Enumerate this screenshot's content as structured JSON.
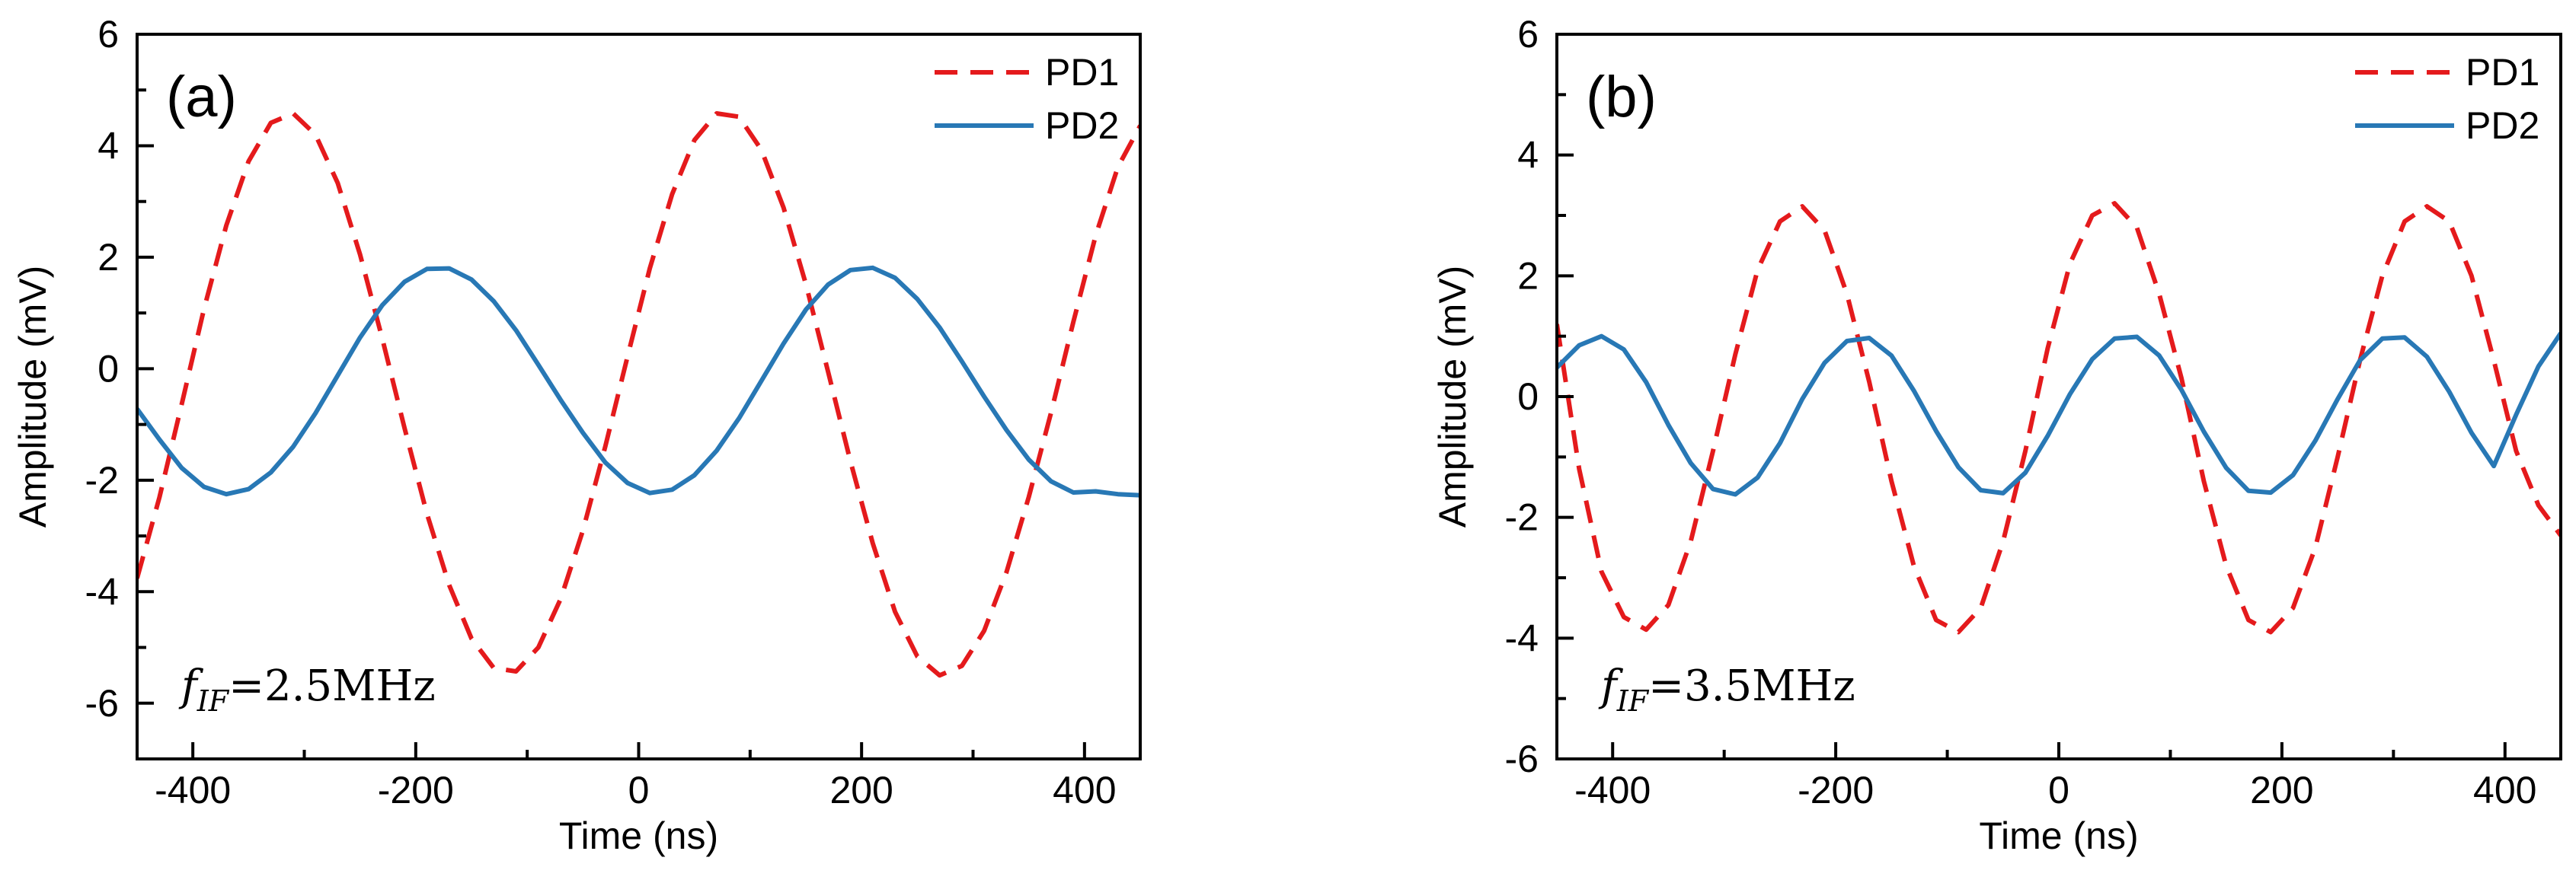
{
  "chart_data": [
    {
      "type": "line",
      "panel_label": "(a)",
      "xlabel": "Time (ns)",
      "ylabel": "Amplitude (mV)",
      "xlim": [
        -450,
        450
      ],
      "ylim": [
        -7,
        6
      ],
      "xticks": [
        -400,
        -200,
        0,
        200,
        400
      ],
      "yticks": [
        -6,
        -4,
        -2,
        0,
        2,
        4,
        6
      ],
      "annotation": {
        "symbol": "f",
        "subscript": "IF",
        "text": "=2.5MHz"
      },
      "legend_position": "top-right",
      "series": [
        {
          "name": "PD1",
          "style": "dashed",
          "color": "#e41a1c",
          "x": [
            -450,
            -430,
            -410,
            -390,
            -370,
            -350,
            -330,
            -310,
            -290,
            -270,
            -250,
            -230,
            -210,
            -190,
            -170,
            -150,
            -130,
            -110,
            -90,
            -70,
            -50,
            -30,
            -10,
            10,
            30,
            50,
            70,
            90,
            110,
            130,
            150,
            170,
            190,
            210,
            230,
            250,
            270,
            290,
            310,
            330,
            350,
            370,
            390,
            410,
            430,
            450
          ],
          "y": [
            -3.76,
            -2.31,
            -0.64,
            1.07,
            2.57,
            3.72,
            4.41,
            4.58,
            4.2,
            3.33,
            2.05,
            0.54,
            -1.07,
            -2.6,
            -3.88,
            -4.84,
            -5.37,
            -5.43,
            -5.0,
            -4.13,
            -2.9,
            -1.4,
            0.22,
            1.8,
            3.13,
            4.1,
            4.58,
            4.52,
            3.93,
            2.89,
            1.52,
            -0.06,
            -1.66,
            -3.13,
            -4.36,
            -5.16,
            -5.5,
            -5.33,
            -4.7,
            -3.65,
            -2.3,
            -0.79,
            0.84,
            2.39,
            3.62,
            4.36
          ]
        },
        {
          "name": "PD2",
          "style": "solid",
          "color": "#2878b5",
          "x": [
            -450,
            -430,
            -410,
            -390,
            -370,
            -350,
            -330,
            -310,
            -290,
            -270,
            -250,
            -230,
            -210,
            -190,
            -170,
            -150,
            -130,
            -110,
            -90,
            -70,
            -50,
            -30,
            -10,
            10,
            30,
            50,
            70,
            90,
            110,
            130,
            150,
            170,
            190,
            210,
            230,
            250,
            270,
            290,
            310,
            330,
            350,
            370,
            390,
            410,
            430,
            450
          ],
          "y": [
            -0.72,
            -1.27,
            -1.78,
            -2.12,
            -2.25,
            -2.16,
            -1.86,
            -1.4,
            -0.8,
            -0.12,
            0.56,
            1.14,
            1.56,
            1.79,
            1.8,
            1.6,
            1.21,
            0.69,
            0.07,
            -0.56,
            -1.15,
            -1.68,
            -2.05,
            -2.23,
            -2.17,
            -1.91,
            -1.47,
            -0.89,
            -0.22,
            0.45,
            1.06,
            1.51,
            1.77,
            1.81,
            1.63,
            1.25,
            0.74,
            0.13,
            -0.5,
            -1.1,
            -1.63,
            -2.02,
            -2.22,
            -2.2,
            -2.25,
            -2.27
          ]
        }
      ]
    },
    {
      "type": "line",
      "panel_label": "(b)",
      "xlabel": "Time (ns)",
      "ylabel": "Amplitude (mV)",
      "xlim": [
        -450,
        450
      ],
      "ylim": [
        -6,
        6
      ],
      "xticks": [
        -400,
        -200,
        0,
        200,
        400
      ],
      "yticks": [
        -6,
        -4,
        -2,
        0,
        2,
        4,
        6
      ],
      "annotation": {
        "symbol": "f",
        "subscript": "IF",
        "text": "=3.5MHz"
      },
      "legend_position": "top-right",
      "series": [
        {
          "name": "PD1",
          "style": "dashed",
          "color": "#e41a1c",
          "x": [
            -450,
            -430,
            -410,
            -390,
            -370,
            -350,
            -330,
            -310,
            -290,
            -270,
            -250,
            -230,
            -210,
            -190,
            -170,
            -150,
            -130,
            -110,
            -90,
            -70,
            -50,
            -30,
            -10,
            10,
            30,
            50,
            70,
            90,
            110,
            130,
            150,
            170,
            190,
            210,
            230,
            250,
            270,
            290,
            310,
            330,
            350,
            370,
            390,
            410,
            430,
            450
          ],
          "y": [
            1.2,
            -1.2,
            -2.9,
            -3.65,
            -3.86,
            -3.45,
            -2.4,
            -0.9,
            0.7,
            2.1,
            2.9,
            3.15,
            2.75,
            1.7,
            0.25,
            -1.4,
            -2.8,
            -3.7,
            -3.9,
            -3.5,
            -2.4,
            -0.9,
            0.8,
            2.2,
            3.0,
            3.2,
            2.8,
            1.7,
            0.3,
            -1.4,
            -2.8,
            -3.7,
            -3.9,
            -3.5,
            -2.5,
            -1.0,
            0.6,
            2.0,
            2.9,
            3.15,
            2.9,
            2.0,
            0.6,
            -0.9,
            -1.8,
            -2.3
          ]
        },
        {
          "name": "PD2",
          "style": "solid",
          "color": "#2878b5",
          "x": [
            -450,
            -430,
            -410,
            -390,
            -370,
            -350,
            -330,
            -310,
            -290,
            -270,
            -250,
            -230,
            -210,
            -190,
            -170,
            -150,
            -130,
            -110,
            -90,
            -70,
            -50,
            -30,
            -10,
            10,
            30,
            50,
            70,
            90,
            110,
            130,
            150,
            170,
            190,
            210,
            230,
            250,
            270,
            290,
            310,
            330,
            350,
            370,
            390,
            410,
            430,
            450
          ],
          "y": [
            0.48,
            0.85,
            1.0,
            0.78,
            0.24,
            -0.47,
            -1.1,
            -1.53,
            -1.62,
            -1.34,
            -0.77,
            -0.04,
            0.56,
            0.92,
            0.97,
            0.68,
            0.1,
            -0.57,
            -1.17,
            -1.55,
            -1.6,
            -1.26,
            -0.65,
            0.04,
            0.62,
            0.96,
            0.99,
            0.68,
            0.11,
            -0.58,
            -1.18,
            -1.56,
            -1.59,
            -1.3,
            -0.73,
            -0.04,
            0.6,
            0.96,
            0.98,
            0.66,
            0.08,
            -0.6,
            -1.15,
            -0.3,
            0.5,
            1.05
          ]
        }
      ]
    }
  ]
}
